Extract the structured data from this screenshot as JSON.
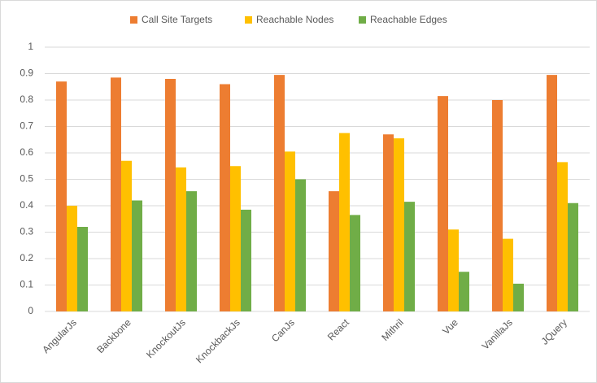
{
  "chart_data": {
    "type": "bar",
    "categories": [
      "AngularJs",
      "Backbone",
      "KnockoutJs",
      "KnockbackJs",
      "CanJs",
      "React",
      "Mithril",
      "Vue",
      "VanillaJs",
      "JQuery"
    ],
    "series": [
      {
        "name": "Call Site Targets",
        "color": "#ed7d31",
        "values": [
          0.87,
          0.885,
          0.88,
          0.86,
          0.895,
          0.455,
          0.67,
          0.815,
          0.8,
          0.895
        ]
      },
      {
        "name": "Reachable Nodes",
        "color": "#ffc000",
        "values": [
          0.4,
          0.57,
          0.545,
          0.55,
          0.605,
          0.675,
          0.655,
          0.31,
          0.275,
          0.565
        ]
      },
      {
        "name": "Reachable Edges",
        "color": "#70ad47",
        "values": [
          0.32,
          0.42,
          0.455,
          0.385,
          0.5,
          0.365,
          0.415,
          0.15,
          0.105,
          0.41
        ]
      }
    ],
    "ylim": [
      0,
      1
    ],
    "yticks": [
      0,
      0.1,
      0.2,
      0.3,
      0.4,
      0.5,
      0.6,
      0.7,
      0.8,
      0.9,
      1
    ],
    "grid": true,
    "legend": "top"
  }
}
